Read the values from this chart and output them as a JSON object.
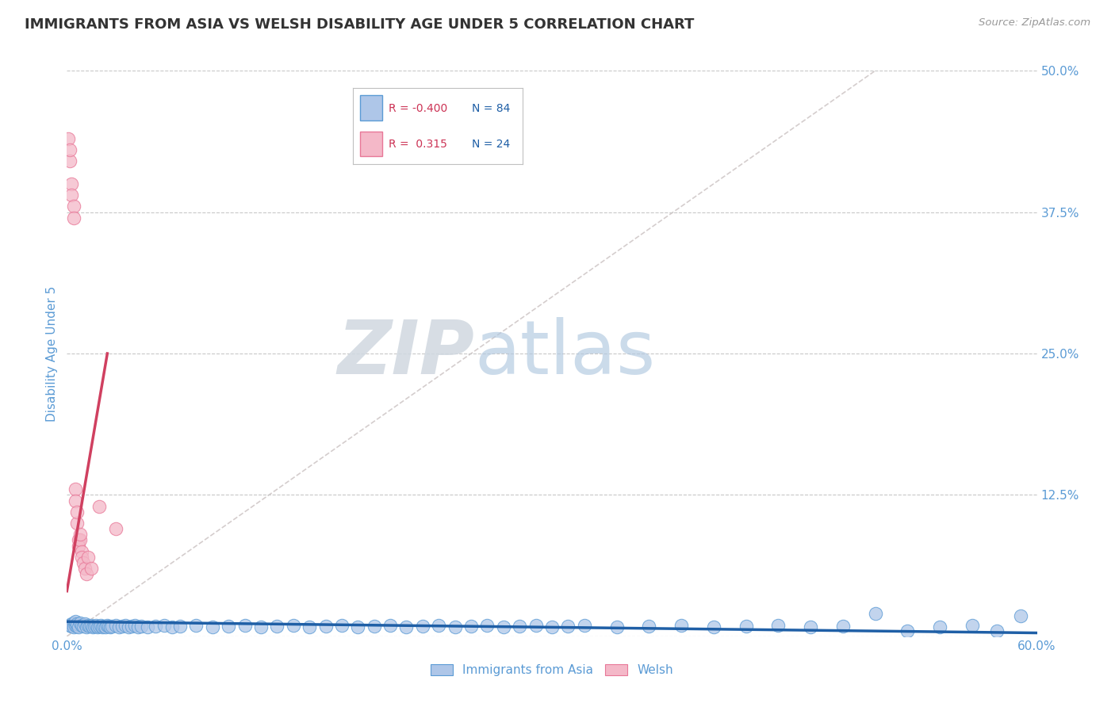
{
  "title": "IMMIGRANTS FROM ASIA VS WELSH DISABILITY AGE UNDER 5 CORRELATION CHART",
  "source": "Source: ZipAtlas.com",
  "ylabel": "Disability Age Under 5",
  "xlim": [
    0.0,
    0.6
  ],
  "ylim": [
    0.0,
    0.5
  ],
  "xticks": [
    0.0,
    0.1,
    0.2,
    0.3,
    0.4,
    0.5,
    0.6
  ],
  "xticklabels": [
    "0.0%",
    "",
    "",
    "",
    "",
    "",
    "60.0%"
  ],
  "yticks": [
    0.0,
    0.125,
    0.25,
    0.375,
    0.5
  ],
  "yticklabels": [
    "",
    "12.5%",
    "25.0%",
    "37.5%",
    "50.0%"
  ],
  "grid_color": "#c8c8c8",
  "background_color": "#ffffff",
  "title_color": "#333333",
  "tick_label_color": "#5b9bd5",
  "blue_scatter_color": "#aec6e8",
  "blue_scatter_edge": "#5b9bd5",
  "pink_scatter_color": "#f4b8c8",
  "pink_scatter_edge": "#e87898",
  "blue_line_color": "#1f5fa6",
  "pink_line_color": "#d04060",
  "diag_line_color": "#d0c8c8",
  "legend_R_blue": "-0.400",
  "legend_N_blue": "84",
  "legend_R_pink": "0.315",
  "legend_N_pink": "24",
  "legend_label_blue": "Immigrants from Asia",
  "legend_label_pink": "Welsh",
  "watermark_zip": "ZIP",
  "watermark_atlas": "atlas",
  "blue_x": [
    0.002,
    0.003,
    0.003,
    0.004,
    0.004,
    0.005,
    0.005,
    0.006,
    0.006,
    0.007,
    0.008,
    0.009,
    0.01,
    0.011,
    0.012,
    0.013,
    0.014,
    0.015,
    0.016,
    0.017,
    0.018,
    0.019,
    0.02,
    0.021,
    0.022,
    0.023,
    0.024,
    0.025,
    0.026,
    0.027,
    0.028,
    0.03,
    0.032,
    0.034,
    0.036,
    0.038,
    0.04,
    0.042,
    0.044,
    0.046,
    0.05,
    0.055,
    0.06,
    0.065,
    0.07,
    0.08,
    0.09,
    0.1,
    0.11,
    0.12,
    0.13,
    0.14,
    0.15,
    0.16,
    0.17,
    0.18,
    0.19,
    0.2,
    0.21,
    0.22,
    0.23,
    0.24,
    0.25,
    0.26,
    0.27,
    0.28,
    0.29,
    0.3,
    0.31,
    0.32,
    0.34,
    0.36,
    0.38,
    0.4,
    0.42,
    0.44,
    0.46,
    0.48,
    0.5,
    0.52,
    0.54,
    0.56,
    0.575,
    0.59
  ],
  "blue_y": [
    0.01,
    0.011,
    0.009,
    0.012,
    0.008,
    0.01,
    0.013,
    0.009,
    0.011,
    0.008,
    0.012,
    0.01,
    0.009,
    0.011,
    0.008,
    0.01,
    0.009,
    0.01,
    0.008,
    0.009,
    0.01,
    0.008,
    0.009,
    0.01,
    0.008,
    0.009,
    0.008,
    0.01,
    0.009,
    0.008,
    0.009,
    0.01,
    0.008,
    0.009,
    0.01,
    0.008,
    0.009,
    0.01,
    0.008,
    0.009,
    0.008,
    0.009,
    0.01,
    0.008,
    0.009,
    0.01,
    0.008,
    0.009,
    0.01,
    0.008,
    0.009,
    0.01,
    0.008,
    0.009,
    0.01,
    0.008,
    0.009,
    0.01,
    0.008,
    0.009,
    0.01,
    0.008,
    0.009,
    0.01,
    0.008,
    0.009,
    0.01,
    0.008,
    0.009,
    0.01,
    0.008,
    0.009,
    0.01,
    0.008,
    0.009,
    0.01,
    0.008,
    0.009,
    0.02,
    0.005,
    0.008,
    0.01,
    0.005,
    0.018
  ],
  "pink_x": [
    0.001,
    0.002,
    0.002,
    0.003,
    0.003,
    0.004,
    0.004,
    0.005,
    0.005,
    0.006,
    0.006,
    0.007,
    0.007,
    0.008,
    0.008,
    0.009,
    0.009,
    0.01,
    0.011,
    0.012,
    0.013,
    0.015,
    0.02,
    0.03
  ],
  "pink_y": [
    0.44,
    0.42,
    0.43,
    0.4,
    0.39,
    0.38,
    0.37,
    0.13,
    0.12,
    0.1,
    0.11,
    0.085,
    0.08,
    0.085,
    0.09,
    0.075,
    0.07,
    0.065,
    0.06,
    0.055,
    0.07,
    0.06,
    0.115,
    0.095
  ],
  "blue_trend_x": [
    0.0,
    0.6
  ],
  "blue_trend_y": [
    0.013,
    0.003
  ],
  "pink_trend_x": [
    0.0,
    0.025
  ],
  "pink_trend_y": [
    0.04,
    0.25
  ]
}
